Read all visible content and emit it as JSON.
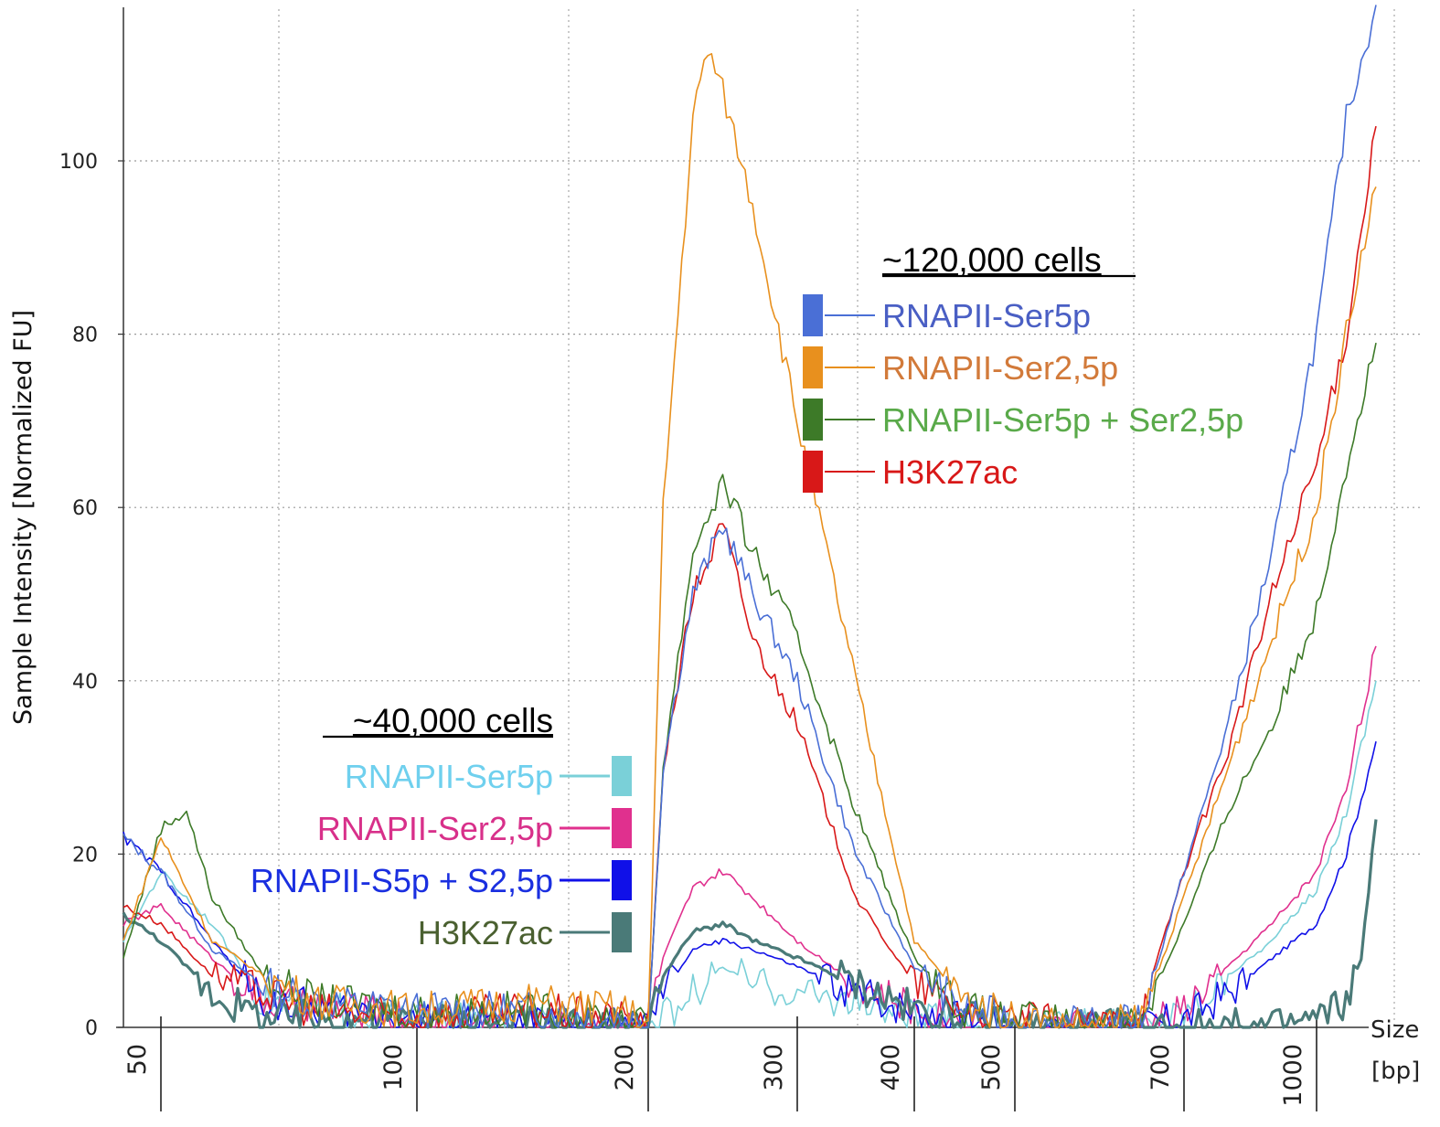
{
  "chart_data": {
    "type": "line",
    "title": "",
    "ylabel": "Sample Intensity [Normalized FU]",
    "xlabel": "Size",
    "xunit": "[bp]",
    "ylim": [
      0,
      117
    ],
    "y_ticks": [
      0,
      20,
      40,
      60,
      80,
      100
    ],
    "x_ticks": [
      "50",
      "100",
      "200",
      "300",
      "400",
      "500",
      "700",
      "1000"
    ],
    "x_marker_labels": [
      "50",
      "100",
      "200",
      "300",
      "400",
      "500",
      "700",
      "1000"
    ],
    "grid": true,
    "x_positions_note": "x values are base-pair sizes on the sizing ladder scale",
    "legend_groups": [
      {
        "title": "~120,000 cells",
        "placement": "top-center",
        "entries": [
          {
            "name": "RNAPII-Ser5p",
            "color": "#4a6fd6",
            "text_color": "#4a5fc4"
          },
          {
            "name": "RNAPII-Ser2,5p",
            "color": "#e8901e",
            "text_color": "#d27a3a"
          },
          {
            "name": "RNAPII-Ser5p + Ser2,5p",
            "color": "#3d7a28",
            "text_color": "#5aaa4a"
          },
          {
            "name": "H3K27ac",
            "color": "#d81818",
            "text_color": "#d81818"
          }
        ]
      },
      {
        "title": "~40,000 cells",
        "placement": "bottom-left",
        "entries": [
          {
            "name": "RNAPII-Ser5p",
            "color": "#7ad0d8",
            "text_color": "#6fd0ee"
          },
          {
            "name": "RNAPII-Ser2,5p",
            "color": "#e0308e",
            "text_color": "#d8308a"
          },
          {
            "name": "RNAPII-S5p + S2,5p",
            "color": "#1010e8",
            "text_color": "#1a2fe0"
          },
          {
            "name": "H3K27ac",
            "color": "#4a7a78",
            "text_color": "#4a6030"
          }
        ]
      }
    ],
    "series": [
      {
        "name": "RNAPII-Ser5p",
        "group": "~120,000 cells",
        "color": "#4a6fd6",
        "x": [
          45,
          50,
          60,
          70,
          80,
          100,
          150,
          190,
          200,
          210,
          230,
          250,
          270,
          300,
          350,
          400,
          450,
          500,
          600,
          650,
          700,
          800,
          900,
          1000,
          1100,
          1200
        ],
        "y": [
          22,
          18,
          9,
          5,
          3,
          2,
          2,
          1,
          0,
          30,
          50,
          58,
          50,
          40,
          20,
          7,
          2,
          1,
          0,
          1,
          18,
          35,
          55,
          80,
          105,
          118
        ]
      },
      {
        "name": "RNAPII-Ser2,5p",
        "group": "~120,000 cells",
        "color": "#e8901e",
        "x": [
          45,
          50,
          60,
          70,
          80,
          100,
          150,
          190,
          200,
          210,
          230,
          240,
          250,
          270,
          300,
          350,
          400,
          450,
          500,
          600,
          650,
          700,
          800,
          900,
          1000,
          1100,
          1200
        ],
        "y": [
          10,
          22,
          10,
          6,
          3,
          2,
          3,
          2,
          0,
          60,
          105,
          113,
          108,
          95,
          70,
          40,
          10,
          3,
          1,
          0,
          1,
          15,
          30,
          45,
          60,
          80,
          97
        ]
      },
      {
        "name": "RNAPII-Ser5p + Ser2,5p",
        "group": "~120,000 cells",
        "color": "#3d7a28",
        "x": [
          45,
          50,
          55,
          60,
          70,
          80,
          100,
          150,
          190,
          200,
          210,
          230,
          250,
          270,
          300,
          350,
          400,
          450,
          500,
          600,
          650,
          700,
          800,
          900,
          1000,
          1100,
          1200
        ],
        "y": [
          8,
          23,
          25,
          15,
          6,
          3,
          2,
          2,
          1,
          0,
          30,
          55,
          63,
          55,
          45,
          25,
          8,
          2,
          1,
          0,
          1,
          12,
          25,
          35,
          48,
          65,
          79
        ]
      },
      {
        "name": "H3K27ac",
        "group": "~120,000 cells",
        "color": "#d81818",
        "x": [
          45,
          50,
          60,
          70,
          80,
          100,
          150,
          190,
          200,
          210,
          230,
          250,
          270,
          300,
          350,
          400,
          450,
          500,
          600,
          650,
          700,
          800,
          900,
          1000,
          1100,
          1200
        ],
        "y": [
          14,
          12,
          6,
          4,
          2,
          1,
          2,
          1,
          0,
          30,
          50,
          58,
          45,
          35,
          15,
          5,
          2,
          1,
          0,
          2,
          18,
          32,
          50,
          65,
          80,
          104
        ]
      },
      {
        "name": "RNAPII-Ser5p",
        "group": "~40,000 cells",
        "color": "#7ad0d8",
        "x": [
          45,
          50,
          60,
          70,
          100,
          190,
          200,
          210,
          230,
          250,
          270,
          300,
          350,
          400,
          500,
          600,
          650,
          700,
          800,
          900,
          1000,
          1100,
          1200
        ],
        "y": [
          10,
          18,
          12,
          3,
          1,
          0,
          0,
          1,
          4,
          7,
          5,
          4,
          3,
          1,
          0,
          0,
          0,
          2,
          6,
          10,
          16,
          25,
          40
        ]
      },
      {
        "name": "RNAPII-Ser2,5p",
        "group": "~40,000 cells",
        "color": "#e0308e",
        "x": [
          45,
          50,
          60,
          70,
          100,
          190,
          200,
          210,
          230,
          250,
          270,
          300,
          350,
          400,
          500,
          600,
          650,
          700,
          800,
          900,
          1000,
          1100,
          1200
        ],
        "y": [
          12,
          14,
          8,
          3,
          1,
          0,
          0,
          8,
          16,
          18,
          15,
          10,
          5,
          2,
          0,
          0,
          0,
          2,
          7,
          12,
          18,
          28,
          44
        ]
      },
      {
        "name": "RNAPII-S5p + S2,5p",
        "group": "~40,000 cells",
        "color": "#1010e8",
        "x": [
          45,
          50,
          60,
          70,
          100,
          190,
          200,
          210,
          230,
          250,
          270,
          300,
          350,
          400,
          500,
          600,
          650,
          700,
          800,
          900,
          1000,
          1100,
          1200
        ],
        "y": [
          22,
          18,
          10,
          3,
          1,
          0,
          0,
          4,
          9,
          10,
          9,
          7,
          4,
          2,
          0,
          0,
          0,
          1,
          4,
          8,
          12,
          20,
          33
        ]
      },
      {
        "name": "H3K27ac",
        "group": "~40,000 cells",
        "color": "#4a7a78",
        "x": [
          45,
          50,
          60,
          70,
          100,
          190,
          200,
          210,
          230,
          250,
          270,
          300,
          350,
          400,
          500,
          600,
          700,
          800,
          900,
          1000,
          1100,
          1150,
          1200
        ],
        "y": [
          13,
          10,
          4,
          1,
          1,
          0,
          0,
          6,
          11,
          12,
          10,
          8,
          5,
          2,
          0,
          0,
          0,
          0,
          0,
          1,
          3,
          8,
          24
        ]
      }
    ]
  }
}
